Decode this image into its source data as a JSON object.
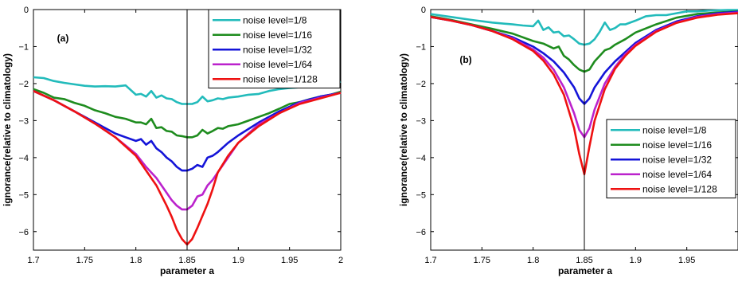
{
  "chart_data": [
    {
      "panel_label": "(a)",
      "type": "line",
      "xlabel": "parameter a",
      "ylabel": "ignorance(relative to climatology)",
      "xlim": [
        1.7,
        2.0
      ],
      "ylim": [
        -6.5,
        0
      ],
      "xticks": [
        1.7,
        1.75,
        1.8,
        1.85,
        1.9,
        1.95,
        2.0
      ],
      "xtick_labels": [
        "1.7",
        "1.75",
        "1.8",
        "1.85",
        "1.9",
        "1.95",
        "2"
      ],
      "yticks": [
        0,
        -1,
        -2,
        -3,
        -4,
        -5,
        -6
      ],
      "ytick_labels": [
        "0",
        "−1",
        "−2",
        "−3",
        "−4",
        "−5",
        "−6"
      ],
      "vertical_line_x": 1.85,
      "legend_position": "top-right",
      "series": [
        {
          "name": "noise level=1/8",
          "color": "#22bbbb",
          "x": [
            1.7,
            1.71,
            1.72,
            1.73,
            1.74,
            1.75,
            1.76,
            1.77,
            1.78,
            1.79,
            1.8,
            1.805,
            1.81,
            1.815,
            1.82,
            1.825,
            1.83,
            1.835,
            1.84,
            1.845,
            1.85,
            1.855,
            1.86,
            1.865,
            1.87,
            1.875,
            1.88,
            1.885,
            1.89,
            1.9,
            1.91,
            1.92,
            1.93,
            1.94,
            1.95,
            1.96,
            1.97,
            1.98,
            1.99,
            2.0
          ],
          "y": [
            -1.83,
            -1.85,
            -1.93,
            -1.98,
            -2.02,
            -2.06,
            -2.08,
            -2.07,
            -2.08,
            -2.05,
            -2.3,
            -2.28,
            -2.35,
            -2.2,
            -2.38,
            -2.32,
            -2.4,
            -2.42,
            -2.5,
            -2.55,
            -2.55,
            -2.55,
            -2.5,
            -2.35,
            -2.48,
            -2.45,
            -2.4,
            -2.42,
            -2.38,
            -2.35,
            -2.3,
            -2.28,
            -2.2,
            -2.15,
            -2.12,
            -2.1,
            -2.05,
            -2.0,
            -2.0,
            -1.95
          ]
        },
        {
          "name": "noise level=1/16",
          "color": "#1e8c1e",
          "x": [
            1.7,
            1.71,
            1.72,
            1.73,
            1.74,
            1.75,
            1.76,
            1.77,
            1.78,
            1.79,
            1.8,
            1.805,
            1.81,
            1.815,
            1.82,
            1.825,
            1.83,
            1.835,
            1.84,
            1.845,
            1.85,
            1.855,
            1.86,
            1.865,
            1.87,
            1.875,
            1.88,
            1.885,
            1.89,
            1.9,
            1.91,
            1.92,
            1.93,
            1.94,
            1.95,
            1.96,
            1.97,
            1.98,
            1.99,
            2.0
          ],
          "y": [
            -2.15,
            -2.25,
            -2.38,
            -2.42,
            -2.52,
            -2.6,
            -2.72,
            -2.8,
            -2.9,
            -2.95,
            -3.05,
            -3.05,
            -3.1,
            -2.95,
            -3.2,
            -3.18,
            -3.28,
            -3.3,
            -3.4,
            -3.42,
            -3.45,
            -3.45,
            -3.4,
            -3.25,
            -3.35,
            -3.28,
            -3.2,
            -3.22,
            -3.15,
            -3.1,
            -3.0,
            -2.9,
            -2.8,
            -2.68,
            -2.55,
            -2.5,
            -2.42,
            -2.35,
            -2.3,
            -2.22
          ]
        },
        {
          "name": "noise level=1/32",
          "color": "#1414d8",
          "x": [
            1.7,
            1.72,
            1.74,
            1.76,
            1.78,
            1.79,
            1.8,
            1.805,
            1.81,
            1.815,
            1.82,
            1.825,
            1.83,
            1.835,
            1.84,
            1.845,
            1.85,
            1.855,
            1.86,
            1.865,
            1.87,
            1.875,
            1.88,
            1.89,
            1.9,
            1.92,
            1.94,
            1.96,
            1.98,
            2.0
          ],
          "y": [
            -2.2,
            -2.45,
            -2.75,
            -3.05,
            -3.35,
            -3.45,
            -3.55,
            -3.5,
            -3.65,
            -3.55,
            -3.75,
            -3.85,
            -4.0,
            -4.1,
            -4.25,
            -4.35,
            -4.35,
            -4.3,
            -4.2,
            -4.25,
            -4.0,
            -3.95,
            -3.85,
            -3.6,
            -3.4,
            -3.05,
            -2.75,
            -2.5,
            -2.35,
            -2.25
          ]
        },
        {
          "name": "noise level=1/64",
          "color": "#bb22cc",
          "x": [
            1.7,
            1.72,
            1.74,
            1.76,
            1.78,
            1.8,
            1.81,
            1.82,
            1.83,
            1.835,
            1.84,
            1.845,
            1.85,
            1.855,
            1.86,
            1.865,
            1.87,
            1.875,
            1.88,
            1.89,
            1.9,
            1.92,
            1.94,
            1.96,
            1.98,
            2.0
          ],
          "y": [
            -2.2,
            -2.45,
            -2.75,
            -3.08,
            -3.45,
            -3.9,
            -4.25,
            -4.55,
            -4.95,
            -5.15,
            -5.3,
            -5.4,
            -5.4,
            -5.3,
            -5.05,
            -5.0,
            -4.75,
            -4.6,
            -4.4,
            -4.0,
            -3.6,
            -3.1,
            -2.8,
            -2.52,
            -2.38,
            -2.25
          ]
        },
        {
          "name": "noise level=1/128",
          "color": "#ee1111",
          "x": [
            1.7,
            1.72,
            1.74,
            1.76,
            1.78,
            1.8,
            1.81,
            1.82,
            1.83,
            1.835,
            1.84,
            1.845,
            1.85,
            1.855,
            1.86,
            1.87,
            1.875,
            1.88,
            1.89,
            1.9,
            1.92,
            1.94,
            1.96,
            1.98,
            2.0
          ],
          "y": [
            -2.2,
            -2.45,
            -2.75,
            -3.08,
            -3.45,
            -3.95,
            -4.35,
            -4.75,
            -5.3,
            -5.6,
            -5.95,
            -6.2,
            -6.35,
            -6.2,
            -5.9,
            -5.25,
            -4.85,
            -4.4,
            -3.95,
            -3.6,
            -3.15,
            -2.8,
            -2.55,
            -2.4,
            -2.25
          ]
        }
      ]
    },
    {
      "panel_label": "(b)",
      "type": "line",
      "xlabel": "parameter a",
      "ylabel": "ignorance(relative to climatology)",
      "xlim": [
        1.7,
        2.0
      ],
      "ylim": [
        -6.5,
        0
      ],
      "xticks": [
        1.7,
        1.75,
        1.8,
        1.85,
        1.9,
        1.95
      ],
      "xtick_labels": [
        "1.7",
        "1.75",
        "1.8",
        "1.85",
        "1.9",
        "1.95"
      ],
      "yticks": [
        0,
        -1,
        -2,
        -3,
        -4,
        -5,
        -6
      ],
      "ytick_labels": [
        "0",
        "−1",
        "−2",
        "−3",
        "−4",
        "−5",
        "−6"
      ],
      "vertical_line_x": 1.85,
      "legend_position": "right",
      "series": [
        {
          "name": "noise level=1/8",
          "color": "#22bbbb",
          "x": [
            1.7,
            1.72,
            1.74,
            1.76,
            1.78,
            1.79,
            1.8,
            1.805,
            1.81,
            1.815,
            1.82,
            1.825,
            1.83,
            1.835,
            1.84,
            1.845,
            1.85,
            1.855,
            1.86,
            1.865,
            1.87,
            1.875,
            1.88,
            1.885,
            1.89,
            1.9,
            1.91,
            1.92,
            1.93,
            1.94,
            1.95,
            1.96,
            1.97,
            1.98,
            1.99,
            2.0
          ],
          "y": [
            -0.12,
            -0.2,
            -0.28,
            -0.35,
            -0.4,
            -0.43,
            -0.45,
            -0.3,
            -0.55,
            -0.48,
            -0.62,
            -0.6,
            -0.72,
            -0.7,
            -0.8,
            -0.92,
            -0.95,
            -0.92,
            -0.8,
            -0.6,
            -0.35,
            -0.55,
            -0.5,
            -0.4,
            -0.4,
            -0.3,
            -0.18,
            -0.15,
            -0.15,
            -0.1,
            -0.05,
            -0.05,
            -0.03,
            -0.02,
            -0.01,
            -0.01
          ]
        },
        {
          "name": "noise level=1/16",
          "color": "#1e8c1e",
          "x": [
            1.7,
            1.72,
            1.74,
            1.76,
            1.78,
            1.8,
            1.81,
            1.82,
            1.825,
            1.83,
            1.835,
            1.84,
            1.845,
            1.85,
            1.855,
            1.86,
            1.865,
            1.87,
            1.875,
            1.88,
            1.89,
            1.9,
            1.92,
            1.94,
            1.96,
            1.98,
            2.0
          ],
          "y": [
            -0.18,
            -0.28,
            -0.4,
            -0.52,
            -0.65,
            -0.85,
            -0.92,
            -1.05,
            -1.0,
            -1.25,
            -1.35,
            -1.5,
            -1.62,
            -1.68,
            -1.62,
            -1.4,
            -1.25,
            -1.1,
            -1.05,
            -0.95,
            -0.8,
            -0.62,
            -0.4,
            -0.22,
            -0.12,
            -0.08,
            -0.05
          ]
        },
        {
          "name": "noise level=1/32",
          "color": "#1414d8",
          "x": [
            1.7,
            1.72,
            1.74,
            1.76,
            1.78,
            1.8,
            1.81,
            1.82,
            1.83,
            1.84,
            1.845,
            1.85,
            1.855,
            1.86,
            1.87,
            1.88,
            1.89,
            1.9,
            1.92,
            1.94,
            1.96,
            1.98,
            2.0
          ],
          "y": [
            -0.2,
            -0.3,
            -0.42,
            -0.58,
            -0.75,
            -1.0,
            -1.18,
            -1.4,
            -1.7,
            -2.1,
            -2.4,
            -2.55,
            -2.4,
            -2.1,
            -1.7,
            -1.4,
            -1.15,
            -0.9,
            -0.55,
            -0.32,
            -0.18,
            -0.1,
            -0.06
          ]
        },
        {
          "name": "noise level=1/64",
          "color": "#bb22cc",
          "x": [
            1.7,
            1.72,
            1.74,
            1.76,
            1.78,
            1.8,
            1.81,
            1.82,
            1.83,
            1.84,
            1.845,
            1.85,
            1.855,
            1.86,
            1.87,
            1.88,
            1.89,
            1.9,
            1.92,
            1.94,
            1.96,
            1.98,
            2.0
          ],
          "y": [
            -0.2,
            -0.3,
            -0.42,
            -0.58,
            -0.78,
            -1.08,
            -1.3,
            -1.62,
            -2.1,
            -2.8,
            -3.25,
            -3.45,
            -3.2,
            -2.7,
            -2.0,
            -1.55,
            -1.2,
            -0.95,
            -0.58,
            -0.35,
            -0.2,
            -0.12,
            -0.08
          ]
        },
        {
          "name": "noise level=1/128",
          "color": "#ee1111",
          "x": [
            1.7,
            1.72,
            1.74,
            1.76,
            1.78,
            1.8,
            1.81,
            1.82,
            1.83,
            1.84,
            1.845,
            1.85,
            1.855,
            1.86,
            1.87,
            1.88,
            1.89,
            1.9,
            1.92,
            1.94,
            1.96,
            1.98,
            2.0
          ],
          "y": [
            -0.2,
            -0.3,
            -0.42,
            -0.58,
            -0.8,
            -1.12,
            -1.38,
            -1.75,
            -2.3,
            -3.2,
            -3.9,
            -4.45,
            -3.7,
            -3.0,
            -2.15,
            -1.6,
            -1.25,
            -0.98,
            -0.6,
            -0.36,
            -0.22,
            -0.14,
            -0.1
          ]
        }
      ]
    }
  ]
}
